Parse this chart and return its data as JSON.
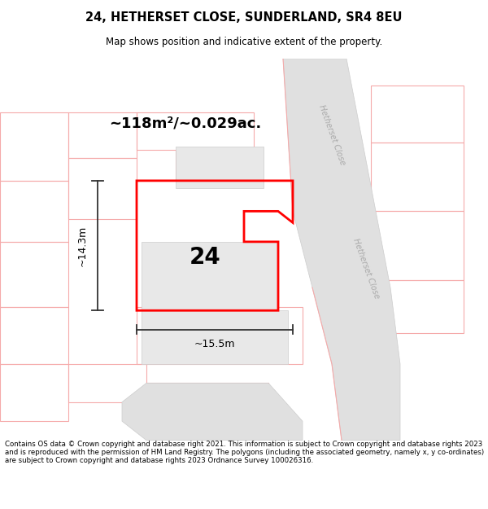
{
  "title_line1": "24, HETHERSET CLOSE, SUNDERLAND, SR4 8EU",
  "title_line2": "Map shows position and indicative extent of the property.",
  "area_text": "~118m²/~0.029ac.",
  "number_label": "24",
  "width_label": "~15.5m",
  "height_label": "~14.3m",
  "street_label": "Hetherset Close",
  "footer_text": "Contains OS data © Crown copyright and database right 2021. This information is subject to Crown copyright and database rights 2023 and is reproduced with the permission of HM Land Registry. The polygons (including the associated geometry, namely x, y co-ordinates) are subject to Crown copyright and database rights 2023 Ordnance Survey 100026316.",
  "bg_color": "#ffffff",
  "map_bg": "#ffffff",
  "plot_edge": "#ff0000",
  "parcel_edge": "#f5aaaa",
  "building_fill": "#e8e8e8",
  "building_edge": "#cccccc",
  "road_fill": "#e0e0e0",
  "road_edge": "#cccccc",
  "arrow_color": "#333333",
  "text_color": "#000000",
  "road_text_color": "#aaaaaa"
}
